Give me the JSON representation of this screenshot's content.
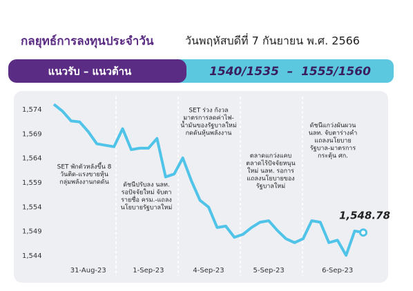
{
  "chart_data": {
    "type": "line",
    "title": "กลยุทธ์การลงทุนประจำวัน",
    "subtitle": "วันพฤหัสบดีที่ 7 กันยายน พ.ศ. 2566",
    "band_label": "แนวรับ – แนวต้าน",
    "band_value": "1540/1535  –  1555/1560",
    "categories": [
      null,
      null,
      null,
      null,
      "31-Aug-23",
      null,
      null,
      null,
      null,
      null,
      null,
      "1-Sep-23",
      null,
      null,
      null,
      null,
      null,
      null,
      "4-Sep-23",
      null,
      null,
      null,
      null,
      null,
      null,
      "5-Sep-23",
      null,
      null,
      null,
      null,
      null,
      null,
      null,
      "6-Sep-23",
      null,
      null,
      null
    ],
    "series": [
      {
        "name": "SET",
        "color": "#4fc3e8",
        "values": [
          1575.1,
          1573.7,
          1571.7,
          1571.5,
          1569.5,
          1567.0,
          1566.7,
          1566.4,
          1570.1,
          1565.8,
          1566.1,
          1566.1,
          1568.1,
          1560.2,
          1560.8,
          1564.1,
          1559.4,
          1555.4,
          1554.0,
          1549.8,
          1550.1,
          1547.8,
          1548.4,
          1549.8,
          1550.9,
          1551.2,
          1549.2,
          1547.5,
          1546.7,
          1547.5,
          1551.2,
          1550.9,
          1546.7,
          1547.2,
          1544.1,
          1549.1,
          1548.78
        ],
        "value_labels": [
          null,
          null,
          null,
          null,
          null,
          null,
          null,
          null,
          null,
          null,
          null,
          null,
          null,
          null,
          null,
          null,
          null,
          null,
          null,
          null,
          null,
          null,
          null,
          null,
          null,
          null,
          null,
          null,
          null,
          null,
          null,
          null,
          null,
          null,
          null,
          null,
          "1,548.78"
        ]
      }
    ],
    "ylim": [
      1543,
      1576
    ],
    "yticks": [
      {
        "value": 1544,
        "label": "1,544"
      },
      {
        "value": 1549,
        "label": "1,549"
      },
      {
        "value": 1554,
        "label": "1,554"
      },
      {
        "value": 1559,
        "label": "1,559"
      },
      {
        "value": 1564,
        "label": "1,564"
      },
      {
        "value": 1569,
        "label": "1,569"
      },
      {
        "value": 1574,
        "label": "1,574"
      }
    ],
    "annotations": [
      [
        "SET พักตัวหลังขึ้น 8",
        "วันติด-แรงขายหุ้น",
        "กลุ่มพลังงานกดดัน"
      ],
      [
        "ดัชนีปรับลง นลท.",
        "รอปัจจัยใหม่ จับตา",
        "รายชื่อ ครม.-แถลง",
        "นโยบายรัฐบาลใหม่"
      ],
      [
        "SET ร่วง กังวล",
        "มาตรการลดค่าไฟ-",
        "น้ำมันของรัฐบาลใหม่",
        "กดดันหุ้นพลังงาน"
      ],
      [
        "ตลาดแกว่งแคบ",
        "ตลาดไร้ปัจจัยหนุน",
        "ใหม่ นลท. รอการ",
        "แถลงนโยบายของ",
        "รัฐบาลใหม่"
      ],
      [
        "ดัชนีแกว่งผันผวน",
        "นลท. จับตาร่างคำ",
        "แถลงนโยบาย",
        "รัฐบาล-มาตรการ",
        "กระตุ้น ศก."
      ]
    ]
  }
}
